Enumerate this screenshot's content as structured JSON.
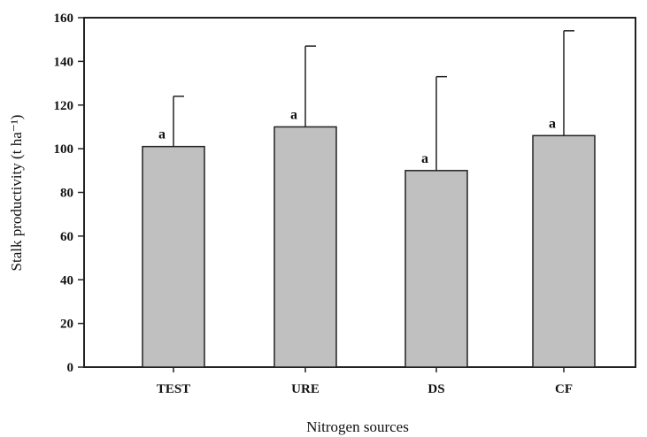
{
  "chart_data": {
    "type": "bar",
    "title": "",
    "xlabel": "Nitrogen sources",
    "ylabel": "Stalk productivity (t ha⁻¹)",
    "categories": [
      "TEST",
      "URE",
      "DS",
      "CF"
    ],
    "values": [
      101,
      110,
      90,
      106
    ],
    "error_upper": [
      124,
      147,
      133,
      154
    ],
    "significance": [
      "a",
      "a",
      "a",
      "a"
    ],
    "ylim": [
      0,
      160
    ],
    "yticks": [
      "0",
      "20",
      "40",
      "60",
      "80",
      "100",
      "120",
      "140",
      "160"
    ],
    "bar_color": "#c0c0c0",
    "grid": false,
    "legend": false
  }
}
